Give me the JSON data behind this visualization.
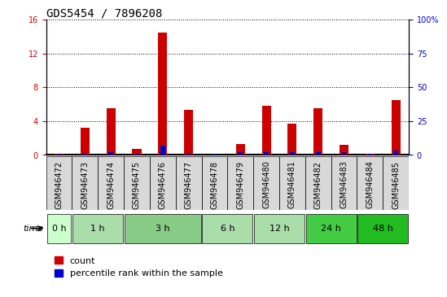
{
  "title": "GDS5454 / 7896208",
  "samples": [
    "GSM946472",
    "GSM946473",
    "GSM946474",
    "GSM946475",
    "GSM946476",
    "GSM946477",
    "GSM946478",
    "GSM946479",
    "GSM946480",
    "GSM946481",
    "GSM946482",
    "GSM946483",
    "GSM946484",
    "GSM946485"
  ],
  "count_values": [
    0.1,
    3.2,
    5.5,
    0.7,
    14.5,
    5.3,
    0.0,
    1.3,
    5.8,
    3.7,
    5.5,
    1.2,
    0.1,
    6.5
  ],
  "percentile_values": [
    1,
    1,
    2,
    1,
    7,
    1,
    1,
    2,
    2,
    2,
    2,
    2,
    1,
    3
  ],
  "count_color": "#cc0000",
  "percentile_color": "#0000cc",
  "ylim_left": [
    0,
    16
  ],
  "ylim_right": [
    0,
    100
  ],
  "yticks_left": [
    0,
    4,
    8,
    12,
    16
  ],
  "yticks_right": [
    0,
    25,
    50,
    75,
    100
  ],
  "background_color": "#ffffff",
  "group_defs": [
    {
      "label": "0 h",
      "start": 0,
      "end": 1,
      "color": "#ccffcc"
    },
    {
      "label": "1 h",
      "start": 1,
      "end": 3,
      "color": "#aaddaa"
    },
    {
      "label": "3 h",
      "start": 3,
      "end": 6,
      "color": "#88cc88"
    },
    {
      "label": "6 h",
      "start": 6,
      "end": 8,
      "color": "#aaddaa"
    },
    {
      "label": "12 h",
      "start": 8,
      "end": 10,
      "color": "#aaddaa"
    },
    {
      "label": "24 h",
      "start": 10,
      "end": 12,
      "color": "#44cc44"
    },
    {
      "label": "48 h",
      "start": 12,
      "end": 14,
      "color": "#22bb22"
    }
  ],
  "xlabel_time": "time",
  "legend_count": "count",
  "legend_percentile": "percentile rank within the sample",
  "title_fontsize": 10,
  "tick_fontsize": 7,
  "label_fontsize": 8,
  "sample_label_fontsize": 7
}
